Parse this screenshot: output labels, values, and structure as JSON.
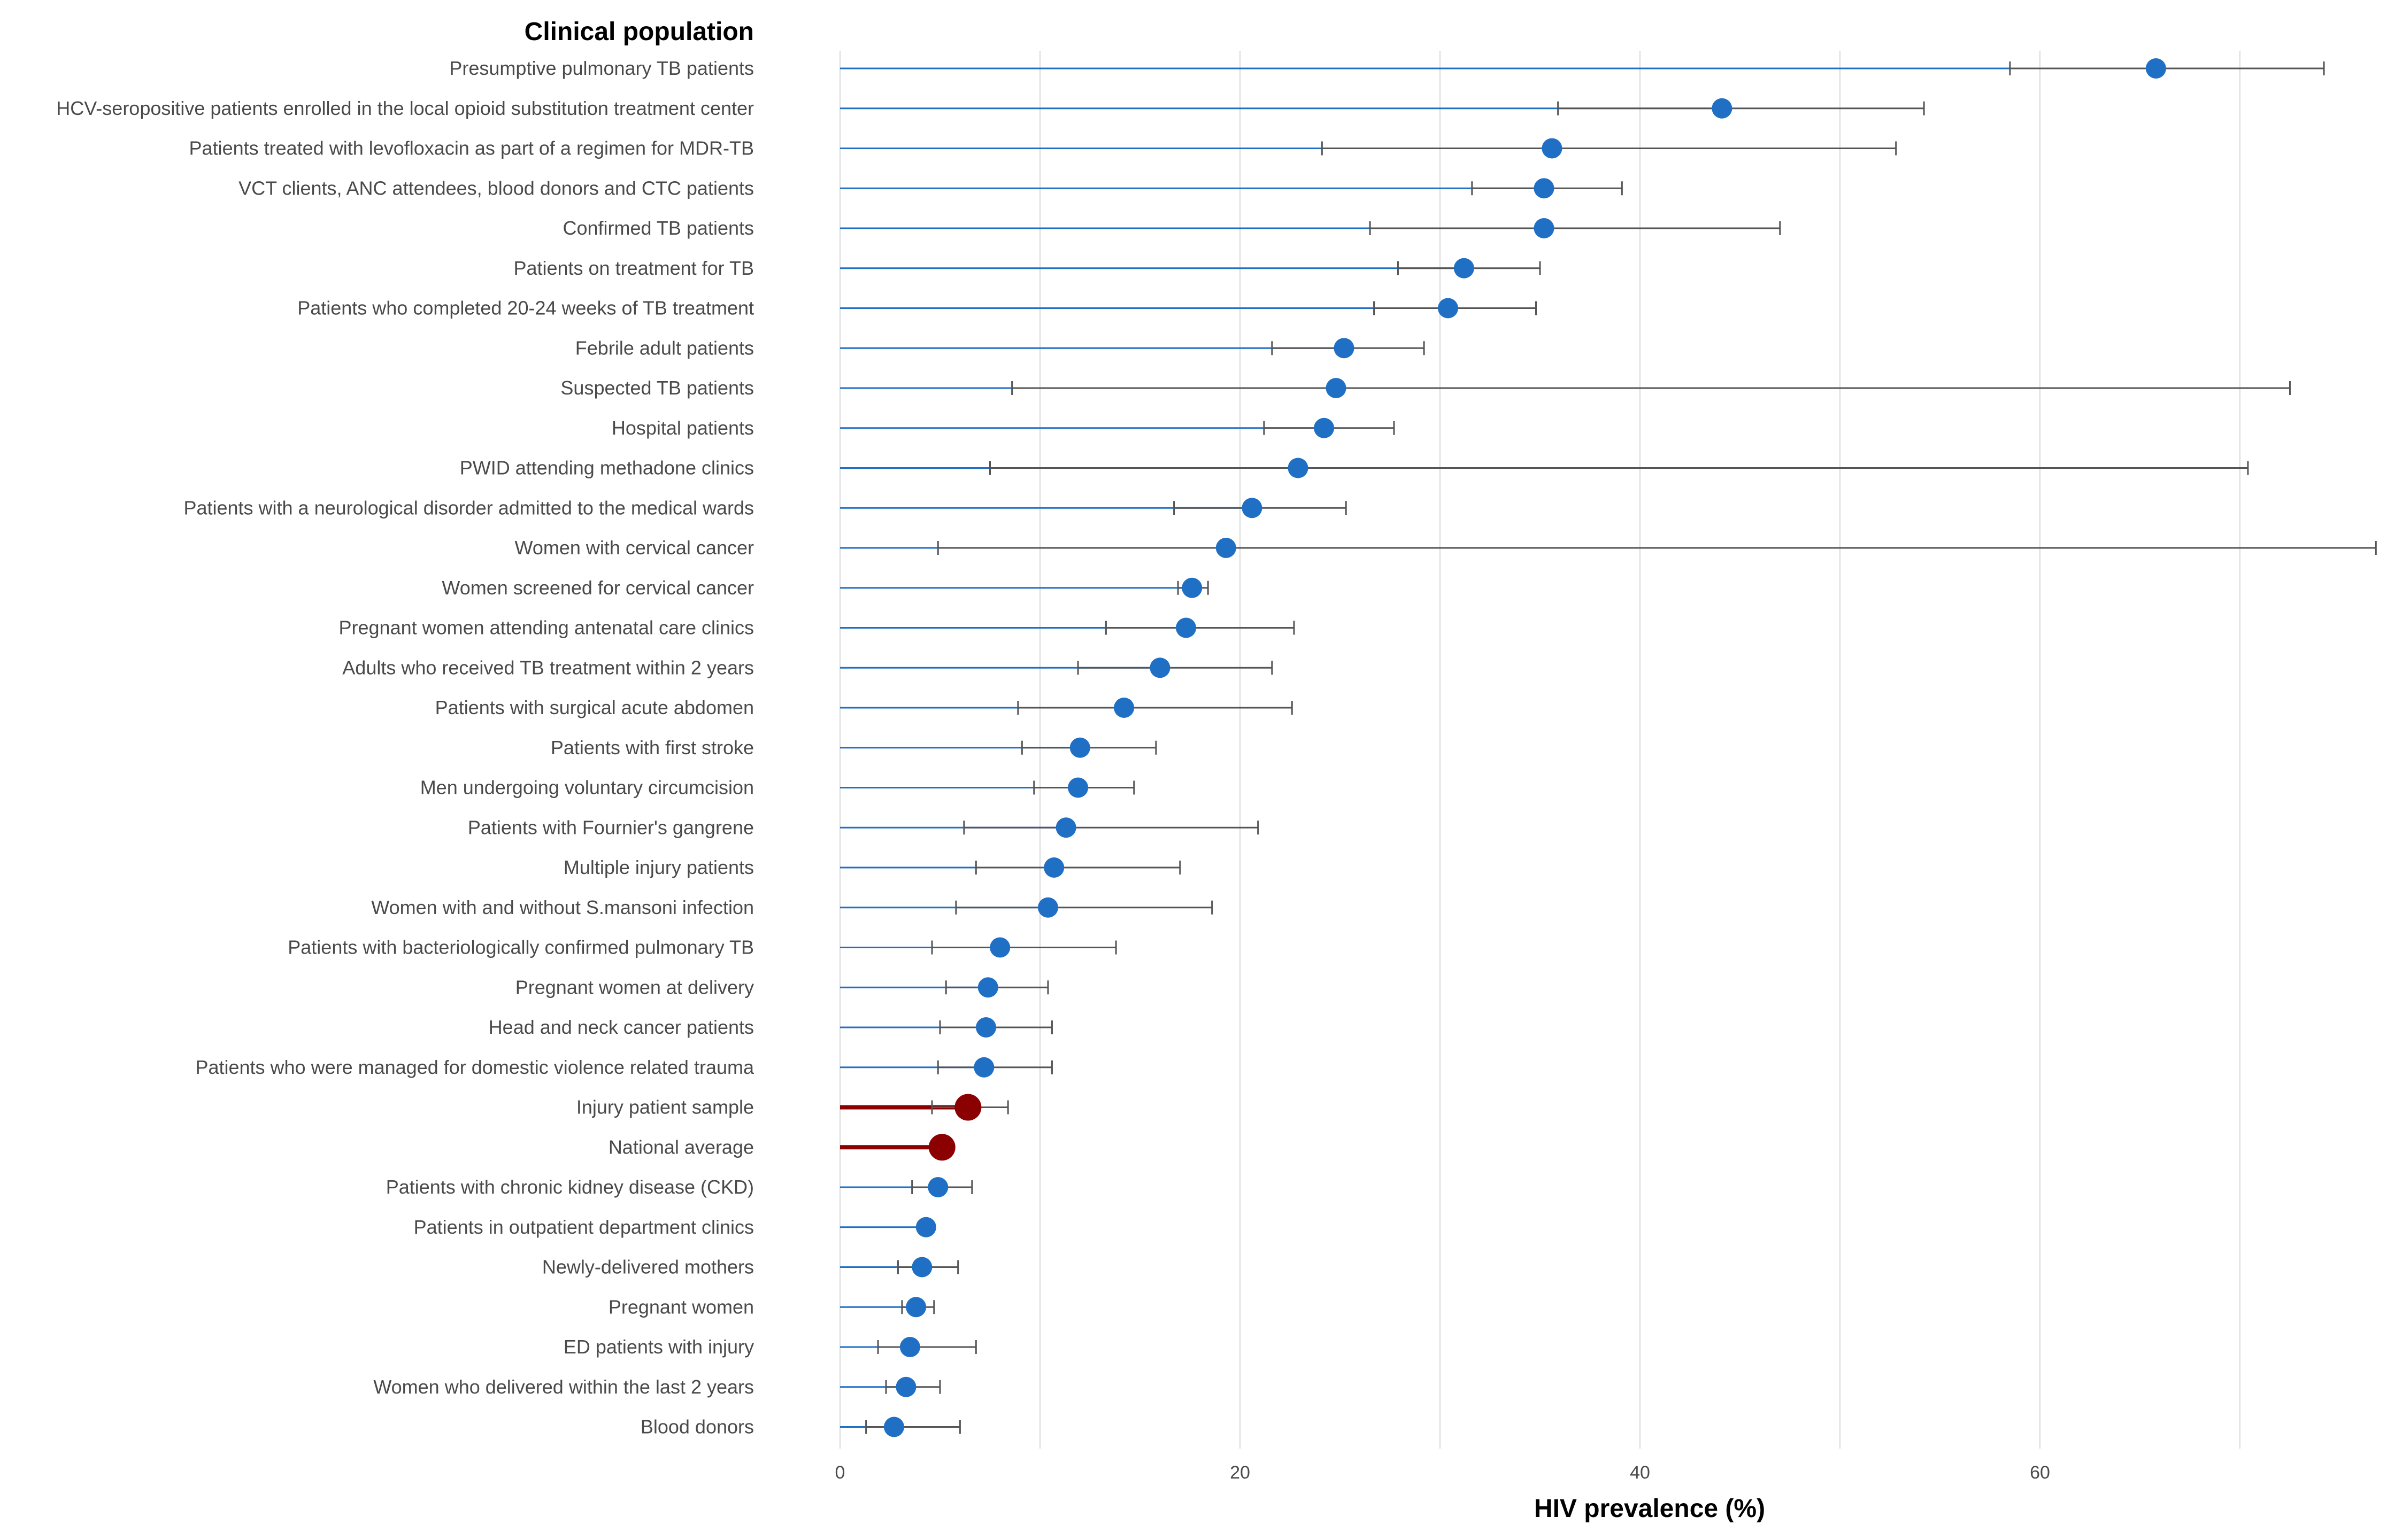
{
  "chart_data": {
    "type": "scatter",
    "subtype": "dot-plot with error bars (95% CI)",
    "title": "Clinical population",
    "xlabel": "HIV prevalence (%)",
    "ylabel": "",
    "xlim": [
      0,
      77
    ],
    "xticks": [
      0,
      20,
      40,
      60
    ],
    "grid_lines": [
      0,
      10,
      20,
      30,
      40,
      50,
      60,
      70
    ],
    "colors": {
      "standard": "#1f6fc5",
      "highlight": "#8b0000",
      "whisker": "#555555",
      "grid": "#d9d9d9",
      "label": "#4a4a4a"
    },
    "series": [
      {
        "label": "Presumptive pulmonary TB patients",
        "value": 65.8,
        "lower": 58.5,
        "upper": 74.2,
        "highlight": false
      },
      {
        "label": "HCV-seropositive patients enrolled in the local opioid substitution treatment center",
        "value": 44.1,
        "lower": 35.9,
        "upper": 54.2,
        "highlight": false
      },
      {
        "label": "Patients treated with levofloxacin as part of a regimen for MDR-TB",
        "value": 35.6,
        "lower": 24.1,
        "upper": 52.8,
        "highlight": false
      },
      {
        "label": "VCT clients, ANC attendees, blood donors and CTC patients",
        "value": 35.2,
        "lower": 31.6,
        "upper": 39.1,
        "highlight": false
      },
      {
        "label": "Confirmed TB patients",
        "value": 35.2,
        "lower": 26.5,
        "upper": 47.0,
        "highlight": false
      },
      {
        "label": "Patients on treatment for TB",
        "value": 31.2,
        "lower": 27.9,
        "upper": 35.0,
        "highlight": false
      },
      {
        "label": "Patients who completed 20-24 weeks of TB treatment",
        "value": 30.4,
        "lower": 26.7,
        "upper": 34.8,
        "highlight": false
      },
      {
        "label": "Febrile adult patients",
        "value": 25.2,
        "lower": 21.6,
        "upper": 29.2,
        "highlight": false
      },
      {
        "label": "Suspected TB patients",
        "value": 24.8,
        "lower": 8.6,
        "upper": 72.5,
        "highlight": false
      },
      {
        "label": "Hospital patients",
        "value": 24.2,
        "lower": 21.2,
        "upper": 27.7,
        "highlight": false
      },
      {
        "label": "PWID attending methadone clinics",
        "value": 22.9,
        "lower": 7.5,
        "upper": 70.4,
        "highlight": false
      },
      {
        "label": "Patients with a neurological disorder admitted to the medical wards",
        "value": 20.6,
        "lower": 16.7,
        "upper": 25.3,
        "highlight": false
      },
      {
        "label": "Women with cervical cancer",
        "value": 19.3,
        "lower": 4.9,
        "upper": 76.8,
        "highlight": false
      },
      {
        "label": "Women screened for cervical cancer",
        "value": 17.6,
        "lower": 16.9,
        "upper": 18.4,
        "highlight": false
      },
      {
        "label": "Pregnant women attending antenatal care clinics",
        "value": 17.3,
        "lower": 13.3,
        "upper": 22.7,
        "highlight": false
      },
      {
        "label": "Adults who received TB treatment within 2 years",
        "value": 16.0,
        "lower": 11.9,
        "upper": 21.6,
        "highlight": false
      },
      {
        "label": "Patients with surgical acute abdomen",
        "value": 14.2,
        "lower": 8.9,
        "upper": 22.6,
        "highlight": false
      },
      {
        "label": "Patients with first stroke",
        "value": 12.0,
        "lower": 9.1,
        "upper": 15.8,
        "highlight": false
      },
      {
        "label": "Men undergoing voluntary circumcision",
        "value": 11.9,
        "lower": 9.7,
        "upper": 14.7,
        "highlight": false
      },
      {
        "label": "Patients with Fournier's gangrene",
        "value": 11.3,
        "lower": 6.2,
        "upper": 20.9,
        "highlight": false
      },
      {
        "label": "Multiple injury patients",
        "value": 10.7,
        "lower": 6.8,
        "upper": 17.0,
        "highlight": false
      },
      {
        "label": "Women with and without S.mansoni infection",
        "value": 10.4,
        "lower": 5.8,
        "upper": 18.6,
        "highlight": false
      },
      {
        "label": "Patients with bacteriologically confirmed pulmonary TB",
        "value": 8.0,
        "lower": 4.6,
        "upper": 13.8,
        "highlight": false
      },
      {
        "label": "Pregnant women at delivery",
        "value": 7.4,
        "lower": 5.3,
        "upper": 10.4,
        "highlight": false
      },
      {
        "label": "Head and neck cancer patients",
        "value": 7.3,
        "lower": 5.0,
        "upper": 10.6,
        "highlight": false
      },
      {
        "label": "Patients who were managed for domestic violence related trauma",
        "value": 7.2,
        "lower": 4.9,
        "upper": 10.6,
        "highlight": false
      },
      {
        "label": "Injury patient sample",
        "value": 6.4,
        "lower": 4.6,
        "upper": 8.4,
        "highlight": true
      },
      {
        "label": "National average",
        "value": 5.1,
        "lower": null,
        "upper": null,
        "highlight": true
      },
      {
        "label": "Patients with chronic kidney disease (CKD)",
        "value": 4.9,
        "lower": 3.6,
        "upper": 6.6,
        "highlight": false
      },
      {
        "label": "Patients in outpatient department clinics",
        "value": 4.3,
        "lower": null,
        "upper": null,
        "highlight": false
      },
      {
        "label": "Newly-delivered mothers",
        "value": 4.1,
        "lower": 2.9,
        "upper": 5.9,
        "highlight": false
      },
      {
        "label": "Pregnant women",
        "value": 3.8,
        "lower": 3.1,
        "upper": 4.7,
        "highlight": false
      },
      {
        "label": "ED patients with injury",
        "value": 3.5,
        "lower": 1.9,
        "upper": 6.8,
        "highlight": false
      },
      {
        "label": "Women who delivered within the last 2 years",
        "value": 3.3,
        "lower": 2.3,
        "upper": 5.0,
        "highlight": false
      },
      {
        "label": "Blood donors",
        "value": 2.7,
        "lower": 1.3,
        "upper": 6.0,
        "highlight": false
      }
    ]
  }
}
